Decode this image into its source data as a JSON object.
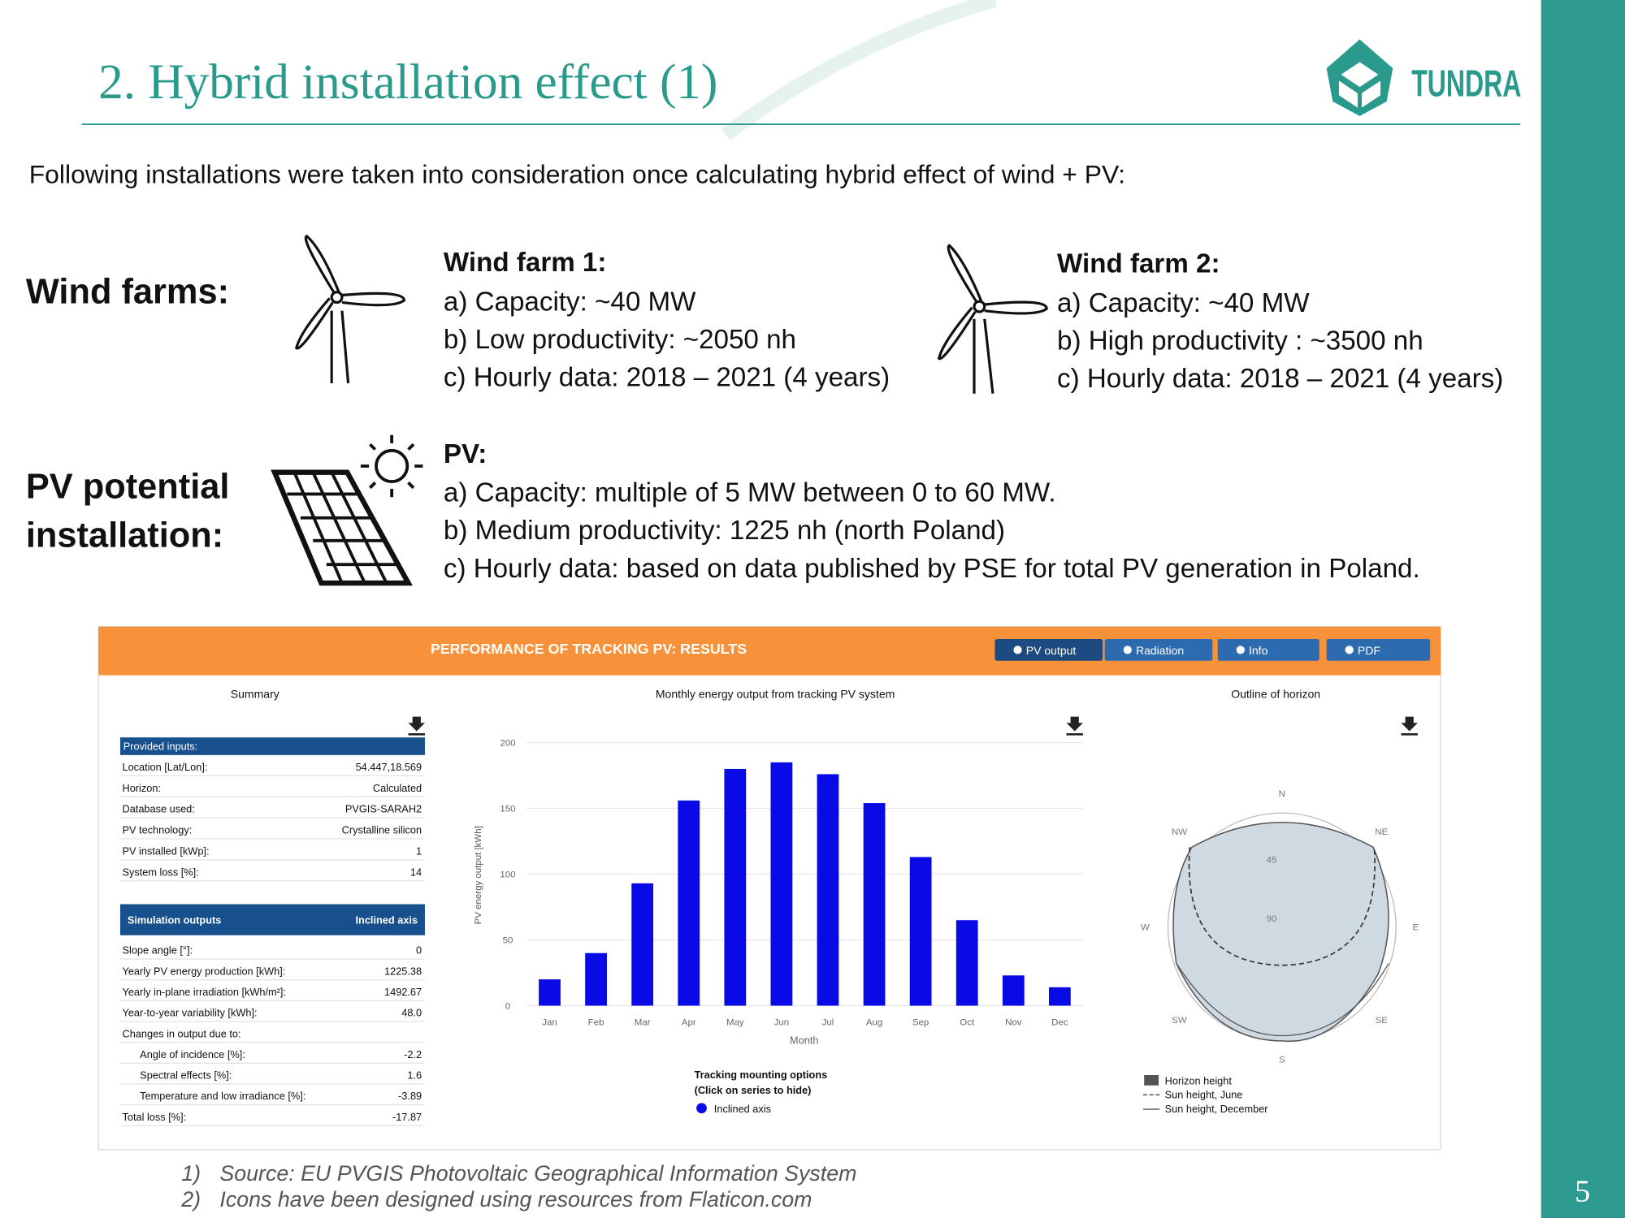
{
  "header": {
    "title": "2. Hybrid installation effect (1)",
    "logo": "TUNDRA",
    "page_number": "5"
  },
  "intro": "Following installations were taken into consideration once calculating hybrid effect of wind + PV:",
  "wind_farms": {
    "label": "Wind farms:",
    "farms": [
      {
        "title": "Wind farm 1:",
        "items": [
          "a) Capacity: ~40 MW",
          "b) Low productivity: ~2050 nh",
          "c) Hourly data: 2018 – 2021 (4 years)"
        ]
      },
      {
        "title": "Wind farm 2:",
        "items": [
          "a) Capacity: ~40 MW",
          "b) High productivity : ~3500 nh",
          "c) Hourly data: 2018 – 2021 (4 years)"
        ]
      }
    ]
  },
  "pv": {
    "label_lines": [
      "PV potential",
      "installation:"
    ],
    "title": "PV:",
    "items": [
      "a) Capacity: multiple of 5 MW between 0 to 60 MW.",
      "b) Medium productivity: 1225 nh (north Poland)",
      "c) Hourly data: based on data published by PSE for total PV generation in Poland."
    ]
  },
  "results_panel": {
    "title": "PERFORMANCE OF TRACKING PV: RESULTS",
    "buttons": [
      "PV output",
      "Radiation",
      "Info",
      "PDF"
    ],
    "summary": {
      "title": "Summary",
      "inputs_header": "Provided inputs:",
      "inputs": [
        [
          "Location [Lat/Lon]:",
          "54.447,18.569"
        ],
        [
          "Horizon:",
          "Calculated"
        ],
        [
          "Database used:",
          "PVGIS-SARAH2"
        ],
        [
          "PV technology:",
          "Crystalline silicon"
        ],
        [
          "PV installed [kWp]:",
          "1"
        ],
        [
          "System loss [%]:",
          "14"
        ]
      ],
      "outputs_header": [
        "Simulation outputs",
        "Inclined axis"
      ],
      "outputs": [
        [
          "Slope angle [°]:",
          "0"
        ],
        [
          "Yearly PV energy production [kWh]:",
          "1225.38"
        ],
        [
          "Yearly in-plane irradiation [kWh/m²]:",
          "1492.67"
        ],
        [
          "Year-to-year variability [kWh]:",
          "48.0"
        ],
        [
          "Changes in output due to:"
        ],
        [
          "Angle of incidence [%]:",
          "-2.2"
        ],
        [
          "Spectral effects [%]:",
          "1.6"
        ],
        [
          "Temperature and low irradiance [%]:",
          "-3.89"
        ],
        [
          "Total loss [%]:",
          "-17.87"
        ]
      ]
    },
    "horizon": {
      "title": "Outline of horizon",
      "directions": [
        "N",
        "NE",
        "E",
        "SE",
        "S",
        "SW",
        "W",
        "NW"
      ],
      "elevation_labels": [
        "45",
        "90"
      ],
      "legend": [
        "Horizon height",
        "Sun height, June",
        "Sun height, December"
      ]
    }
  },
  "chart_data": {
    "type": "bar",
    "title": "Monthly energy output from tracking PV system",
    "x_label": "Month",
    "y_label": "PV energy output [kWh]",
    "categories": [
      "Jan",
      "Feb",
      "Mar",
      "Apr",
      "May",
      "Jun",
      "Jul",
      "Aug",
      "Sep",
      "Oct",
      "Nov",
      "Dec"
    ],
    "series": [
      {
        "name": "Inclined axis",
        "color": "#0a0ae6",
        "values": [
          20,
          40,
          93,
          156,
          180,
          185,
          176,
          154,
          113,
          65,
          23,
          14
        ]
      }
    ],
    "ylim": [
      0,
      200
    ],
    "yticks": [
      0,
      50,
      100,
      150,
      200
    ],
    "grid": true,
    "legend_title": [
      "Tracking mounting options",
      "(Click on series to hide)"
    ]
  },
  "footnotes": [
    {
      "number": "1)",
      "text": "Source: EU PVGIS Photovoltaic Geographical Information System"
    },
    {
      "number": "2)",
      "text": "Icons have been designed using resources from Flaticon.com"
    }
  ]
}
